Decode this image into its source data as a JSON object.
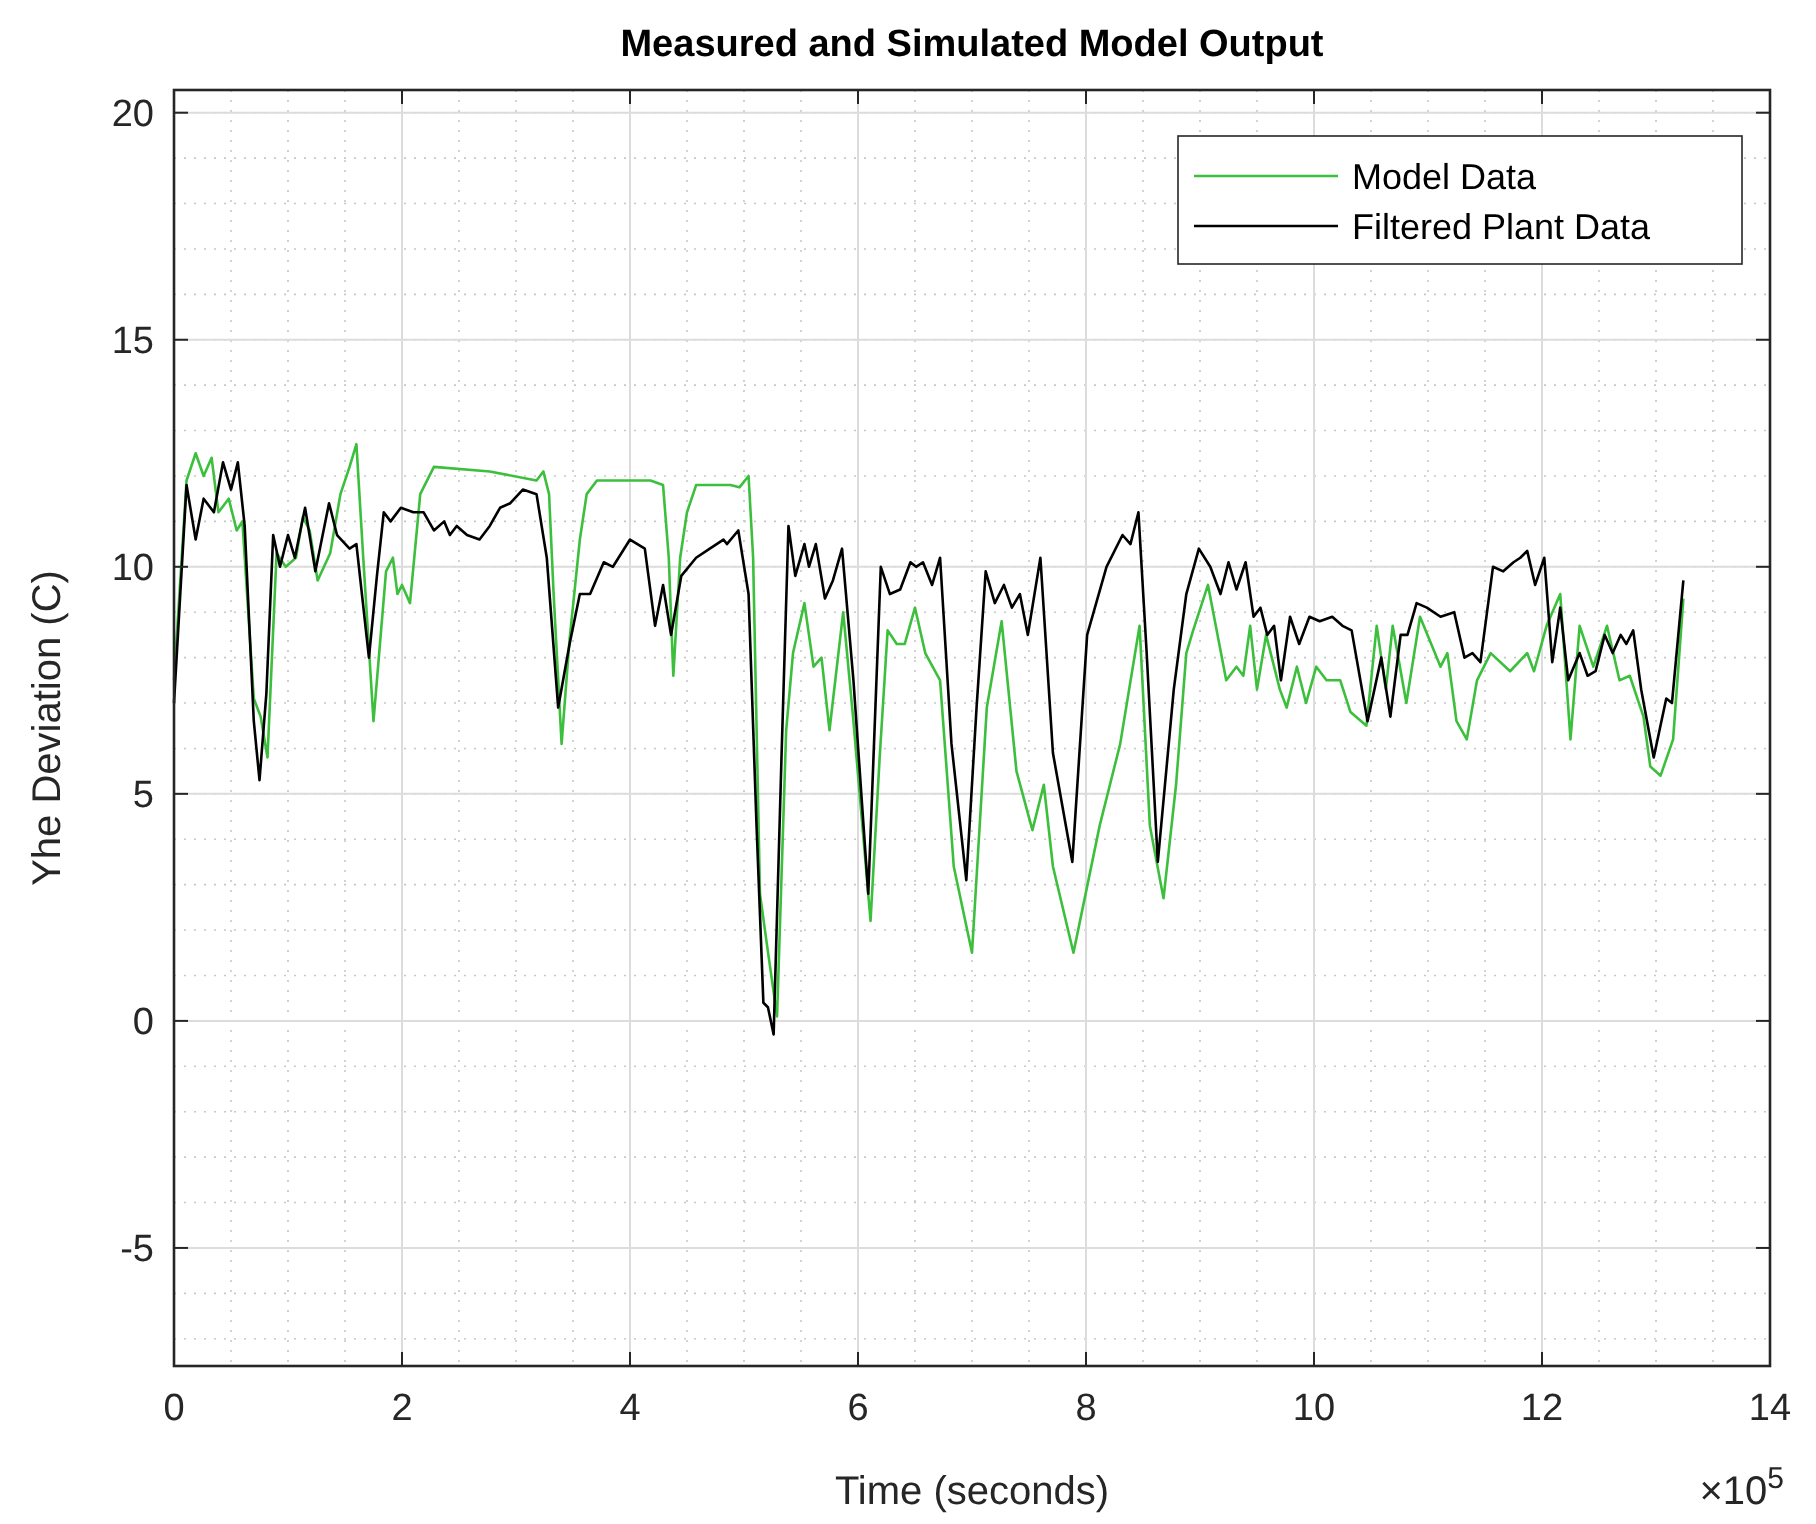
{
  "chart_data": {
    "type": "line",
    "title": "Measured and Simulated Model Output",
    "xlabel": "Time (seconds)",
    "ylabel": "Yhe Deviation (C)",
    "annotations": [
      "×10$^{5}$"
    ],
    "xlim": [
      0,
      14
    ],
    "xticks": [
      0,
      2,
      4,
      6,
      8,
      10,
      12,
      14
    ],
    "ylim": [
      -7.6,
      20.5
    ],
    "yticks": [
      -5,
      0,
      5,
      10,
      15,
      20
    ],
    "grid": true,
    "legend": "top right",
    "line_style": "solid",
    "series": [
      {
        "name": "Model Data",
        "color": "#3cbf3c",
        "x": [
          0,
          0.11,
          0.19,
          0.26,
          0.33,
          0.39,
          0.48,
          0.55,
          0.6,
          0.7,
          0.76,
          0.82,
          0.9,
          0.98,
          1.07,
          1.13,
          1.19,
          1.26,
          1.37,
          1.46,
          1.54,
          1.6,
          1.66,
          1.75,
          1.81,
          1.86,
          1.92,
          1.96,
          2.0,
          2.07,
          2.16,
          2.28,
          2.77,
          3.18,
          3.24,
          3.29,
          3.33,
          3.4,
          3.47,
          3.56,
          3.62,
          3.71,
          4.18,
          4.29,
          4.34,
          4.38,
          4.44,
          4.5,
          4.58,
          4.88,
          4.96,
          5.04,
          5.08,
          5.14,
          5.2,
          5.29,
          5.37,
          5.43,
          5.53,
          5.61,
          5.68,
          5.75,
          5.87,
          5.96,
          6.11,
          6.19,
          6.26,
          6.34,
          6.41,
          6.5,
          6.59,
          6.72,
          6.84,
          7.0,
          7.13,
          7.26,
          7.39,
          7.53,
          7.63,
          7.71,
          7.89,
          8.12,
          8.3,
          8.47,
          8.56,
          8.68,
          8.79,
          8.88,
          8.94,
          9.07,
          9.23,
          9.32,
          9.38,
          9.44,
          9.5,
          9.58,
          9.7,
          9.76,
          9.85,
          9.93,
          10.02,
          10.11,
          10.23,
          10.32,
          10.46,
          10.55,
          10.63,
          10.69,
          10.81,
          10.93,
          11.11,
          11.17,
          11.25,
          11.34,
          11.43,
          11.55,
          11.72,
          11.87,
          11.93,
          12.04,
          12.16,
          12.25,
          12.33,
          12.45,
          12.57,
          12.68,
          12.77,
          12.89,
          12.95,
          13.04,
          13.15,
          13.24
        ],
        "values": [
          7.5,
          11.9,
          12.5,
          12.0,
          12.4,
          11.2,
          11.5,
          10.8,
          11.0,
          7.1,
          6.7,
          5.8,
          10.3,
          10.0,
          10.2,
          11.1,
          10.8,
          9.7,
          10.3,
          11.6,
          12.2,
          12.7,
          10.2,
          6.6,
          8.4,
          9.9,
          10.2,
          9.4,
          9.6,
          9.2,
          11.6,
          12.2,
          12.1,
          11.9,
          12.1,
          11.6,
          9.4,
          6.1,
          8.4,
          10.6,
          11.6,
          11.9,
          11.9,
          11.8,
          10.2,
          7.6,
          10.2,
          11.2,
          11.8,
          11.8,
          11.75,
          12.0,
          10.2,
          2.8,
          1.7,
          0.1,
          6.4,
          8.1,
          9.2,
          7.8,
          8.0,
          6.4,
          9.0,
          6.6,
          2.2,
          5.8,
          8.6,
          8.3,
          8.3,
          9.1,
          8.1,
          7.5,
          3.4,
          1.5,
          6.9,
          8.8,
          5.5,
          4.2,
          5.2,
          3.4,
          1.5,
          4.3,
          6.1,
          8.7,
          4.3,
          2.7,
          5.2,
          8.1,
          8.6,
          9.6,
          7.5,
          7.8,
          7.6,
          8.7,
          7.3,
          8.5,
          7.3,
          6.9,
          7.8,
          7.0,
          7.8,
          7.5,
          7.5,
          6.8,
          6.5,
          8.7,
          7.3,
          8.7,
          7.0,
          8.9,
          7.8,
          8.1,
          6.6,
          6.2,
          7.5,
          8.1,
          7.7,
          8.1,
          7.7,
          8.7,
          9.4,
          6.2,
          8.7,
          7.8,
          8.7,
          7.5,
          7.6,
          6.7,
          5.6,
          5.4,
          6.2,
          9.3
        ]
      },
      {
        "name": "Filtered Plant Data",
        "color": "#000000",
        "x": [
          0,
          0.11,
          0.19,
          0.26,
          0.35,
          0.43,
          0.5,
          0.56,
          0.62,
          0.7,
          0.75,
          0.81,
          0.87,
          0.93,
          1.0,
          1.06,
          1.15,
          1.24,
          1.36,
          1.43,
          1.54,
          1.6,
          1.71,
          1.78,
          1.84,
          1.9,
          1.99,
          2.1,
          2.19,
          2.28,
          2.37,
          2.42,
          2.48,
          2.57,
          2.68,
          2.77,
          2.86,
          2.95,
          3.06,
          3.18,
          3.27,
          3.37,
          3.47,
          3.56,
          3.65,
          3.77,
          3.85,
          4.0,
          4.13,
          4.22,
          4.29,
          4.36,
          4.45,
          4.58,
          4.7,
          4.82,
          4.85,
          4.95,
          5.04,
          5.11,
          5.17,
          5.21,
          5.26,
          5.33,
          5.39,
          5.45,
          5.53,
          5.57,
          5.63,
          5.71,
          5.78,
          5.86,
          5.96,
          6.09,
          6.2,
          6.28,
          6.37,
          6.46,
          6.51,
          6.57,
          6.65,
          6.72,
          6.82,
          6.95,
          7.04,
          7.12,
          7.2,
          7.28,
          7.35,
          7.42,
          7.49,
          7.6,
          7.71,
          7.88,
          8.01,
          8.18,
          8.32,
          8.39,
          8.46,
          8.53,
          8.63,
          8.77,
          8.88,
          8.99,
          9.09,
          9.18,
          9.25,
          9.32,
          9.4,
          9.47,
          9.53,
          9.59,
          9.65,
          9.71,
          9.79,
          9.87,
          9.96,
          10.05,
          10.16,
          10.25,
          10.33,
          10.47,
          10.59,
          10.67,
          10.76,
          10.82,
          10.9,
          10.99,
          11.11,
          11.23,
          11.32,
          11.39,
          11.46,
          11.57,
          11.66,
          11.75,
          11.81,
          11.87,
          11.94,
          12.02,
          12.09,
          12.16,
          12.23,
          12.33,
          12.4,
          12.47,
          12.55,
          12.62,
          12.69,
          12.74,
          12.8,
          12.87,
          12.98,
          13.09,
          13.14,
          13.24
        ],
        "values": [
          7.0,
          11.8,
          10.6,
          11.5,
          11.2,
          12.3,
          11.7,
          12.3,
          10.9,
          6.6,
          5.3,
          7.2,
          10.7,
          10.0,
          10.7,
          10.2,
          11.3,
          9.9,
          11.4,
          10.7,
          10.4,
          10.5,
          8.0,
          9.8,
          11.2,
          11.0,
          11.3,
          11.2,
          11.2,
          10.8,
          11.0,
          10.7,
          10.9,
          10.7,
          10.6,
          10.9,
          11.3,
          11.4,
          11.7,
          11.6,
          10.2,
          6.9,
          8.3,
          9.4,
          9.4,
          10.1,
          10.0,
          10.6,
          10.4,
          8.7,
          9.6,
          8.5,
          9.8,
          10.2,
          10.4,
          10.6,
          10.5,
          10.8,
          9.4,
          4.3,
          0.4,
          0.3,
          -0.3,
          5.9,
          10.9,
          9.8,
          10.5,
          10.0,
          10.5,
          9.3,
          9.7,
          10.4,
          7.5,
          2.8,
          10.0,
          9.4,
          9.5,
          10.1,
          10.0,
          10.1,
          9.6,
          10.2,
          6.1,
          3.1,
          6.9,
          9.9,
          9.2,
          9.6,
          9.1,
          9.4,
          8.5,
          10.2,
          5.9,
          3.5,
          8.5,
          10.0,
          10.7,
          10.5,
          11.2,
          8.2,
          3.5,
          7.3,
          9.4,
          10.4,
          10.0,
          9.4,
          10.1,
          9.5,
          10.1,
          8.9,
          9.1,
          8.5,
          8.7,
          7.5,
          8.9,
          8.3,
          8.9,
          8.8,
          8.9,
          8.7,
          8.6,
          6.6,
          8.0,
          6.7,
          8.5,
          8.5,
          9.2,
          9.1,
          8.9,
          9.0,
          8.0,
          8.1,
          7.9,
          10.0,
          9.9,
          10.1,
          10.2,
          10.35,
          9.6,
          10.2,
          7.9,
          9.1,
          7.5,
          8.1,
          7.6,
          7.7,
          8.5,
          8.1,
          8.5,
          8.3,
          8.6,
          7.3,
          5.8,
          7.1,
          7.0,
          9.7
        ]
      }
    ]
  }
}
